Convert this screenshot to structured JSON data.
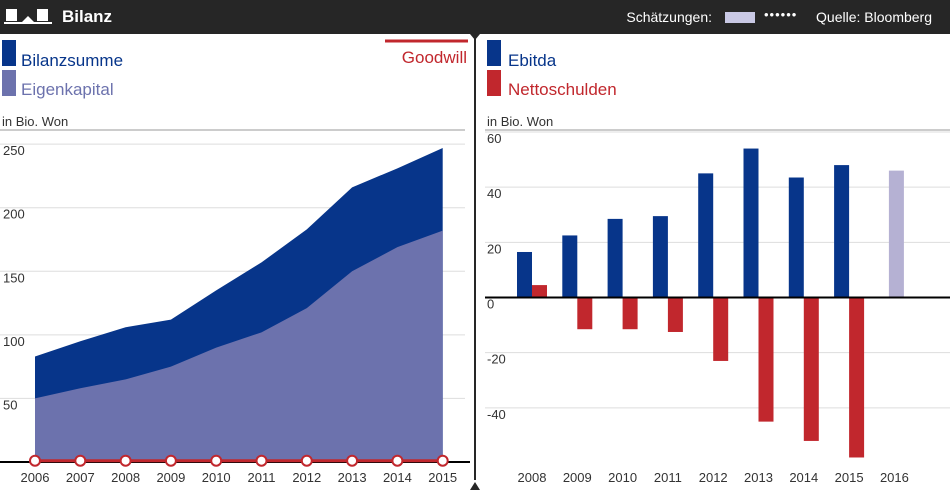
{
  "header": {
    "title": "Bilanz",
    "estimates_label": "Schätzungen:",
    "estimates_dots": "••••••",
    "source_label": "Quelle: Bloomberg"
  },
  "colors": {
    "header_bg": "#262626",
    "dark_blue": "#07358a",
    "light_blue": "#6c72ad",
    "red": "#c1272d",
    "estimate": "#b5b1d3"
  },
  "chart_data": [
    {
      "type": "area",
      "title": "Bilanz",
      "unit_label": "in Bio. Won",
      "x": [
        "2006",
        "2007",
        "2008",
        "2009",
        "2010",
        "2011",
        "2012",
        "2013",
        "2014",
        "2015"
      ],
      "series": [
        {
          "name": "Bilanzsumme",
          "values": [
            83,
            95,
            106,
            112,
            135,
            157,
            183,
            216,
            231,
            247
          ]
        },
        {
          "name": "Eigenkapital",
          "values": [
            50,
            58,
            65,
            75,
            90,
            102,
            121,
            150,
            169,
            182
          ]
        },
        {
          "name": "Goodwill",
          "values": [
            1,
            1,
            1,
            1,
            1,
            1,
            1,
            1,
            1,
            1
          ]
        }
      ],
      "yticks": [
        "250",
        "200",
        "150",
        "100",
        "50"
      ],
      "ylim": [
        0,
        258
      ],
      "legend": [
        "Bilanzsumme",
        "Eigenkapital",
        "Goodwill"
      ]
    },
    {
      "type": "bar",
      "title": "Ebitda / Nettoschulden",
      "unit_label": "in Bio. Won",
      "categories": [
        "2008",
        "2009",
        "2010",
        "2011",
        "2012",
        "2013",
        "2014",
        "2015",
        "2016"
      ],
      "series": [
        {
          "name": "Ebitda",
          "values": [
            16.5,
            22.5,
            28.5,
            29.5,
            45,
            54,
            43.5,
            48,
            46
          ],
          "estimate_from_index": 8
        },
        {
          "name": "Nettoschulden",
          "values": [
            4.5,
            -11.5,
            -11.5,
            -12.5,
            -23,
            -45,
            -52,
            -58,
            null
          ]
        }
      ],
      "yticks": [
        "60",
        "40",
        "20",
        "0",
        "-20",
        "-40"
      ],
      "ylim": [
        -60,
        60
      ],
      "legend": [
        "Ebitda",
        "Nettoschulden"
      ]
    }
  ]
}
